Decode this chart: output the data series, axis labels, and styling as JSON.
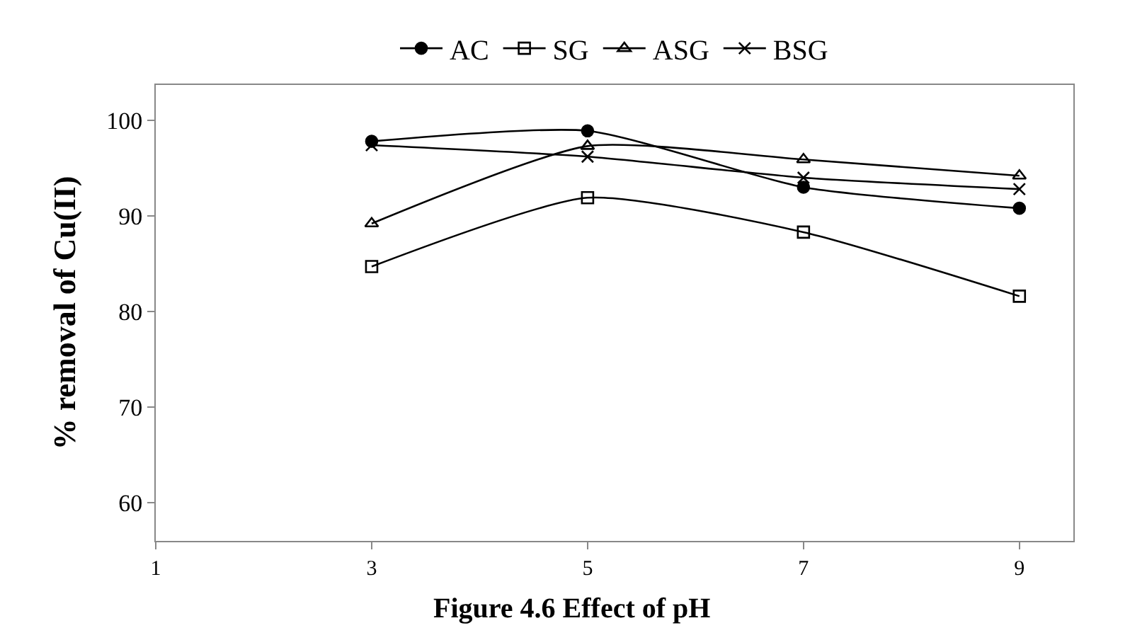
{
  "chart_data": {
    "type": "line",
    "ylabel": "% removal of Cu(II)",
    "x": [
      3,
      5,
      7,
      9
    ],
    "series": [
      {
        "name": "AC",
        "color": "#000000",
        "marker": "circle",
        "values": [
          97.8,
          98.9,
          93.0,
          90.8
        ]
      },
      {
        "name": "SG",
        "color": "#000000",
        "marker": "square",
        "values": [
          84.7,
          91.9,
          88.3,
          81.6
        ]
      },
      {
        "name": "ASG",
        "color": "#000000",
        "marker": "triangle",
        "values": [
          89.2,
          97.3,
          95.9,
          94.2
        ]
      },
      {
        "name": "BSG",
        "color": "#000000",
        "marker": "cross",
        "values": [
          97.4,
          96.2,
          94.0,
          92.8
        ]
      }
    ],
    "xlim": [
      1,
      9.5
    ],
    "xticks": [
      1,
      3,
      5,
      7,
      9
    ],
    "ylim": [
      56,
      103.7
    ],
    "yticks": [
      60,
      70,
      80,
      90,
      100
    ],
    "legend": "top",
    "annotations": [
      "Figure 4.6 Effect of pH"
    ]
  }
}
